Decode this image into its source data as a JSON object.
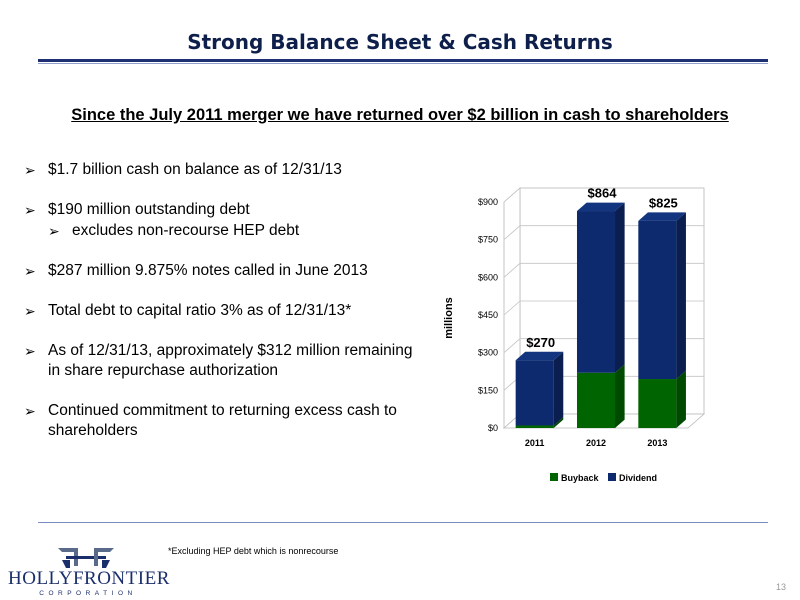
{
  "slide": {
    "title": "Strong Balance Sheet & Cash Returns",
    "subtitle": "Since the July 2011 merger we have returned over $2 billion in cash to shareholders",
    "bullets": [
      {
        "text": "$1.7 billion cash on balance as of 12/31/13"
      },
      {
        "text": "$190 million outstanding debt",
        "sub": "excludes non-recourse HEP debt"
      },
      {
        "text": "$287 million 9.875% notes called in June 2013"
      },
      {
        "text": "Total debt to capital ratio 3% as of 12/31/13*"
      },
      {
        "text": "As of 12/31/13, approximately $312 million remaining in share repurchase authorization"
      },
      {
        "text": "Continued commitment to returning excess cash to shareholders"
      }
    ],
    "footnote": "*Excluding HEP debt which is nonrecourse",
    "page_number": "13",
    "logo": {
      "name": "HOLLYFRONTIER",
      "sub": "CORPORATION"
    }
  },
  "colors": {
    "buyback": "#006400",
    "dividend": "#0d2a6e",
    "title": "#0d1f4a"
  },
  "chart_data": {
    "type": "bar",
    "stacked": true,
    "three_d": true,
    "categories": [
      "2011",
      "2012",
      "2013"
    ],
    "series": [
      {
        "name": "Buyback",
        "values": [
          10,
          220,
          195
        ]
      },
      {
        "name": "Dividend",
        "values": [
          260,
          644,
          630
        ]
      }
    ],
    "totals_labels": [
      "$270",
      "$864",
      "$825"
    ],
    "ylabel": "millions",
    "ylim": [
      0,
      900
    ],
    "yticks": [
      "$0",
      "$150",
      "$300",
      "$450",
      "$600",
      "$750",
      "$900"
    ],
    "ytick_values": [
      0,
      150,
      300,
      450,
      600,
      750,
      900
    ],
    "grid": true,
    "legend": "bottom"
  }
}
